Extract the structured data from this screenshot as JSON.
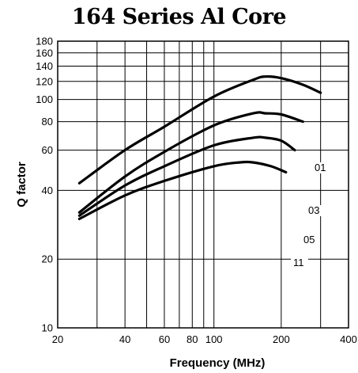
{
  "chart_data": {
    "type": "line",
    "title": "164 Series Al Core",
    "xlabel": "Frequency (MHz)",
    "ylabel": "Q factor",
    "x_scale": "log",
    "y_scale": "log",
    "xlim": [
      20,
      400
    ],
    "ylim": [
      10,
      180
    ],
    "grid": true,
    "x_ticks": [
      20,
      40,
      60,
      80,
      100,
      200,
      400
    ],
    "x_gridlines": [
      20,
      30,
      40,
      50,
      60,
      70,
      80,
      90,
      100,
      200,
      300,
      400
    ],
    "y_ticks": [
      10,
      20,
      40,
      60,
      80,
      100,
      120,
      140,
      160,
      180
    ],
    "series": [
      {
        "name": "01",
        "x": [
          25,
          40,
          60,
          100,
          150,
          170,
          200,
          250,
          300
        ],
        "y": [
          43,
          60,
          76,
          103,
          122,
          126,
          124,
          116,
          107
        ]
      },
      {
        "name": "03",
        "x": [
          25,
          40,
          60,
          100,
          150,
          170,
          200,
          250
        ],
        "y": [
          32,
          46,
          59,
          77,
          87,
          87,
          86,
          80
        ]
      },
      {
        "name": "05",
        "x": [
          25,
          40,
          60,
          100,
          150,
          170,
          200,
          230
        ],
        "y": [
          31,
          42,
          51,
          63,
          68,
          68,
          66,
          60
        ]
      },
      {
        "name": "11",
        "x": [
          25,
          40,
          60,
          100,
          130,
          150,
          180,
          210
        ],
        "y": [
          30,
          38,
          44,
          51,
          53,
          53,
          51,
          48
        ]
      }
    ]
  }
}
